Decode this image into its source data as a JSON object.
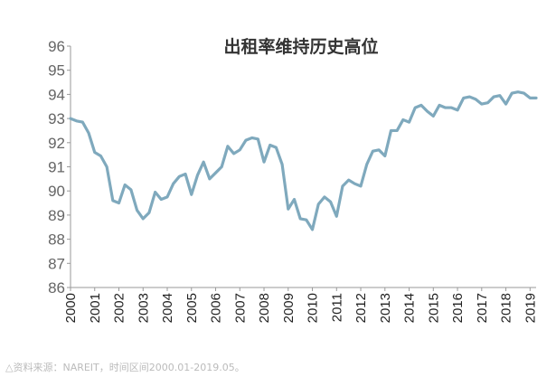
{
  "chart_data": {
    "type": "line",
    "title": "出租率维持历史高位",
    "xlabel": "",
    "ylabel": "",
    "x_ticks": [
      "2000",
      "2001",
      "2002",
      "2003",
      "2004",
      "2005",
      "2006",
      "2007",
      "2008",
      "2009",
      "2010",
      "2011",
      "2012",
      "2013",
      "2014",
      "2015",
      "2016",
      "2017",
      "2018",
      "2019"
    ],
    "y_ticks": [
      86,
      87,
      88,
      89,
      90,
      91,
      92,
      93,
      94,
      95,
      96
    ],
    "ylim": [
      86,
      96
    ],
    "xlim": [
      2000,
      2019.25
    ],
    "grid": false,
    "legend": "none",
    "line_color": "#7fa9bd",
    "series": [
      {
        "x": [
          2000.0,
          2000.25,
          2000.5,
          2000.75,
          2001.0,
          2001.25,
          2001.5,
          2001.75,
          2002.0,
          2002.25,
          2002.5,
          2002.75,
          2003.0,
          2003.25,
          2003.5,
          2003.75,
          2004.0,
          2004.25,
          2004.5,
          2004.75,
          2005.0,
          2005.25,
          2005.5,
          2005.75,
          2006.0,
          2006.25,
          2006.5,
          2006.75,
          2007.0,
          2007.25,
          2007.5,
          2007.75,
          2008.0,
          2008.25,
          2008.5,
          2008.75,
          2009.0,
          2009.25,
          2009.5,
          2009.75,
          2010.0,
          2010.25,
          2010.5,
          2010.75,
          2011.0,
          2011.25,
          2011.5,
          2011.75,
          2012.0,
          2012.25,
          2012.5,
          2012.75,
          2013.0,
          2013.25,
          2013.5,
          2013.75,
          2014.0,
          2014.25,
          2014.5,
          2014.75,
          2015.0,
          2015.25,
          2015.5,
          2015.75,
          2016.0,
          2016.25,
          2016.5,
          2016.75,
          2017.0,
          2017.25,
          2017.5,
          2017.75,
          2018.0,
          2018.25,
          2018.5,
          2018.75,
          2019.0,
          2019.25
        ],
        "values": [
          93.0,
          92.9,
          92.85,
          92.4,
          91.6,
          91.45,
          91.0,
          89.6,
          89.5,
          90.25,
          90.05,
          89.2,
          88.85,
          89.1,
          89.95,
          89.65,
          89.75,
          90.3,
          90.6,
          90.7,
          89.85,
          90.65,
          91.2,
          90.5,
          90.75,
          91.0,
          91.85,
          91.55,
          91.7,
          92.1,
          92.2,
          92.15,
          91.2,
          91.9,
          91.8,
          91.1,
          89.25,
          89.65,
          88.85,
          88.8,
          88.4,
          89.45,
          89.75,
          89.55,
          88.95,
          90.2,
          90.45,
          90.3,
          90.2,
          91.1,
          91.65,
          91.7,
          91.45,
          92.5,
          92.5,
          92.95,
          92.85,
          93.45,
          93.55,
          93.3,
          93.1,
          93.55,
          93.45,
          93.45,
          93.35,
          93.85,
          93.9,
          93.8,
          93.6,
          93.65,
          93.9,
          93.95,
          93.6,
          94.05,
          94.1,
          94.05,
          93.85,
          93.85
        ]
      }
    ]
  },
  "source_note": "△资料来源：NAREIT，时间区间2000.01-2019.05。"
}
